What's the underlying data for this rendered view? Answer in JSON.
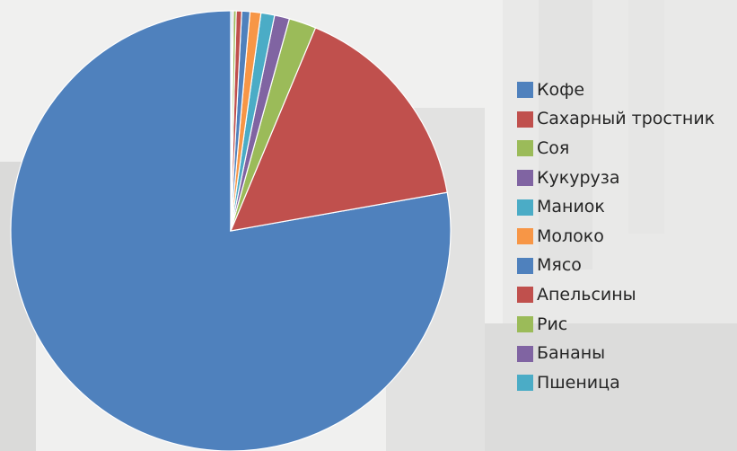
{
  "chart_data": {
    "type": "pie",
    "title": "",
    "legend_position": "right",
    "start_angle_deg": 0,
    "direction": "counterclockwise",
    "categories": [
      "Кофе",
      "Сахарный тростник",
      "Соя",
      "Кукуруза",
      "Маниок",
      "Молоко",
      "Мясо",
      "Апельсины",
      "Рис",
      "Бананы",
      "Пшеница"
    ],
    "values": [
      77.8,
      15.9,
      2.0,
      1.1,
      1.0,
      0.8,
      0.6,
      0.4,
      0.2,
      0.1,
      0.1
    ],
    "unit": "%",
    "colors": [
      "#4f81bd",
      "#c0504d",
      "#9bbb59",
      "#8064a2",
      "#4bacc6",
      "#f79646",
      "#4f81bd",
      "#c0504d",
      "#9bbb59",
      "#8064a2",
      "#4bacc6"
    ]
  }
}
